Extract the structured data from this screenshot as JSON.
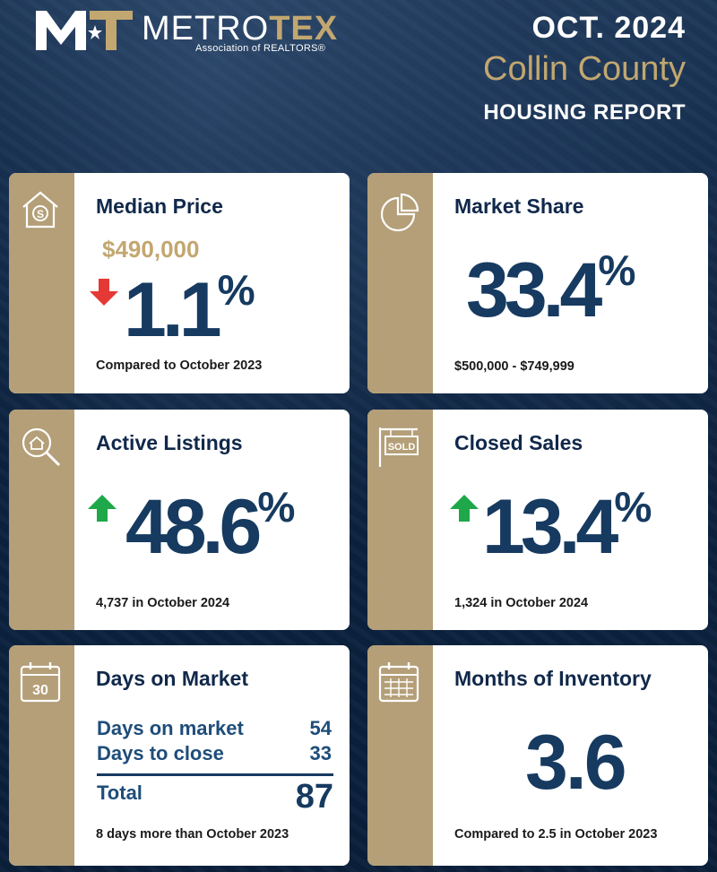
{
  "header": {
    "logo_brand_part1": "METRO",
    "logo_brand_part2": "TEX",
    "logo_sub": "Association of REALTORS®",
    "date": "OCT. 2024",
    "county": "Collin County",
    "report": "HOUSING REPORT"
  },
  "colors": {
    "navy": "#0c2341",
    "gold": "#b49f78",
    "gold_text": "#c2a770",
    "up": "#1ea84a",
    "down": "#e53935"
  },
  "cards": {
    "median_price": {
      "icon": "house-dollar-icon",
      "title": "Median Price",
      "price": "$490,000",
      "trend": "down",
      "value": "1.1",
      "unit": "%",
      "footnote": "Compared to October 2023"
    },
    "market_share": {
      "icon": "pie-chart-icon",
      "title": "Market Share",
      "value": "33.4",
      "unit": "%",
      "footnote": "$500,000 - $749,999"
    },
    "active_listings": {
      "icon": "magnifier-house-icon",
      "title": "Active Listings",
      "trend": "up",
      "value": "48.6",
      "unit": "%",
      "footnote": "4,737 in October 2024"
    },
    "closed_sales": {
      "icon": "sold-sign-icon",
      "title": "Closed Sales",
      "trend": "up",
      "value": "13.4",
      "unit": "%",
      "footnote": "1,324 in October 2024"
    },
    "days_on_market": {
      "icon": "calendar-30-icon",
      "icon_text": "30",
      "title": "Days on Market",
      "rows": [
        {
          "label": "Days on market",
          "value": "54"
        },
        {
          "label": "Days to close",
          "value": "33"
        }
      ],
      "total_label": "Total",
      "total_value": "87",
      "footnote": "8 days more than October 2023"
    },
    "months_inventory": {
      "icon": "calendar-grid-icon",
      "title": "Months of Inventory",
      "value": "3.6",
      "footnote": "Compared to 2.5 in October 2023"
    }
  }
}
